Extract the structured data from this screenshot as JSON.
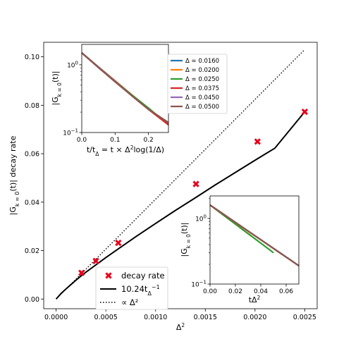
{
  "chart_data": [
    {
      "id": "main",
      "type": "line",
      "xlabel": "Δ²",
      "ylabel": "|G_{k=0}(t)| decay rate",
      "xlim": [
        -0.000125,
        0.002625
      ],
      "ylim": [
        -0.004,
        0.106
      ],
      "x_ticks": [
        "0.0000",
        "0.0005",
        "0.0010",
        "0.0015",
        "0.0020",
        "0.0025"
      ],
      "x_tick_values": [
        0,
        0.0005,
        0.001,
        0.0015,
        0.002,
        0.0025
      ],
      "y_ticks": [
        "0.00",
        "0.02",
        "0.04",
        "0.06",
        "0.08",
        "0.10"
      ],
      "y_tick_values": [
        0,
        0.02,
        0.04,
        0.06,
        0.08,
        0.1
      ],
      "grid": false,
      "legend_placement": "lower-center",
      "series": [
        {
          "name": "decay rate",
          "kind": "scatter",
          "marker": "x",
          "color": "#e8001c",
          "x": [
            0.000256,
            0.0004,
            0.000625,
            0.00140625,
            0.002025,
            0.0025
          ],
          "y": [
            0.0108,
            0.0157,
            0.0232,
            0.0475,
            0.065,
            0.0773
          ]
        },
        {
          "name": "10.24t_Δ^{-1}",
          "kind": "line",
          "style": "solid",
          "color": "#000000",
          "x": [
            0,
            5e-05,
            0.0001,
            0.00015,
            0.0002,
            0.00025,
            0.0003,
            0.0004,
            0.0005,
            0.0006,
            0.0008,
            0.001,
            0.0012,
            0.0014,
            0.0016,
            0.0018,
            0.002,
            0.0022,
            0.0025
          ],
          "y": [
            0,
            0.0023,
            0.0042,
            0.006,
            0.0078,
            0.0095,
            0.0111,
            0.0141,
            0.0171,
            0.02,
            0.0257,
            0.0312,
            0.0366,
            0.0418,
            0.0471,
            0.0522,
            0.0573,
            0.0623,
            0.0773
          ]
        },
        {
          "name": "∝ Δ²",
          "kind": "line",
          "style": "dotted",
          "color": "#000000",
          "x": [
            0,
            0.0025
          ],
          "y": [
            0,
            0.103
          ]
        }
      ]
    },
    {
      "id": "inset-top",
      "type": "line",
      "xlabel": "t/t_Δ = t × Δ²log(1/Δ)",
      "ylabel": "|G_{k=0}(t)|",
      "xlim": [
        0,
        0.26
      ],
      "ylim_log": [
        0.1,
        2.0
      ],
      "y_scale": "log",
      "x_ticks": [
        "0.0",
        "0.1",
        "0.2"
      ],
      "x_tick_values": [
        0,
        0.1,
        0.2
      ],
      "y_ticks": [
        "10^{-1}",
        "10^{0}"
      ],
      "y_tick_values": [
        0.1,
        1
      ],
      "legend_placement": "right",
      "series": [
        {
          "name": "Δ = 0.0160",
          "color": "#1f77b4",
          "x": [
            0,
            0.05,
            0.1,
            0.15,
            0.2,
            0.26
          ],
          "y": [
            1.5,
            0.93,
            0.58,
            0.36,
            0.22,
            0.13
          ]
        },
        {
          "name": "Δ = 0.0200",
          "color": "#ff7f0e",
          "x": [
            0,
            0.05,
            0.1,
            0.15,
            0.2,
            0.26
          ],
          "y": [
            1.5,
            0.92,
            0.58,
            0.36,
            0.22,
            0.13
          ]
        },
        {
          "name": "Δ = 0.0250",
          "color": "#2ca02c",
          "x": [
            0,
            0.05,
            0.1,
            0.15,
            0.2,
            0.26
          ],
          "y": [
            1.5,
            0.92,
            0.57,
            0.36,
            0.23,
            0.13
          ]
        },
        {
          "name": "Δ = 0.0375",
          "color": "#d62728",
          "x": [
            0,
            0.05,
            0.1,
            0.15,
            0.2,
            0.26
          ],
          "y": [
            1.5,
            0.92,
            0.57,
            0.35,
            0.22,
            0.13
          ]
        },
        {
          "name": "Δ = 0.0450",
          "color": "#9467bd",
          "x": [
            0,
            0.05,
            0.1,
            0.15,
            0.2,
            0.26
          ],
          "y": [
            1.5,
            0.91,
            0.57,
            0.35,
            0.22,
            0.14
          ]
        },
        {
          "name": "Δ = 0.0500",
          "color": "#8c564b",
          "x": [
            0,
            0.05,
            0.1,
            0.15,
            0.2,
            0.26
          ],
          "y": [
            1.5,
            0.91,
            0.56,
            0.35,
            0.22,
            0.14
          ]
        }
      ]
    },
    {
      "id": "inset-bottom",
      "type": "line",
      "xlabel": "tΔ²",
      "ylabel": "|G_{k=0}(t)|",
      "xlim": [
        0,
        0.07
      ],
      "ylim_log": [
        0.1,
        2.2
      ],
      "y_scale": "log",
      "x_ticks": [
        "0.00",
        "0.02",
        "0.04",
        "0.06"
      ],
      "x_tick_values": [
        0,
        0.02,
        0.04,
        0.06
      ],
      "y_ticks": [
        "10^{-1}",
        "10^{0}"
      ],
      "y_tick_values": [
        0.1,
        1
      ],
      "series": [
        {
          "name": "Δ = 0.0160",
          "color": "#1f77b4",
          "x": [
            0,
            0.07
          ],
          "y": [
            1.6,
            0.19
          ]
        },
        {
          "name": "Δ = 0.0200",
          "color": "#ff7f0e",
          "x": [
            0,
            0.033
          ],
          "y": [
            1.6,
            0.53
          ]
        },
        {
          "name": "Δ = 0.0250",
          "color": "#2ca02c",
          "x": [
            0,
            0.05
          ],
          "y": [
            1.6,
            0.3
          ]
        },
        {
          "name": "Δ = 0.0375",
          "color": "#d62728",
          "x": [
            0,
            0.056
          ],
          "y": [
            1.6,
            0.29
          ]
        },
        {
          "name": "Δ = 0.0450",
          "color": "#9467bd",
          "x": [
            0,
            0.07
          ],
          "y": [
            1.6,
            0.19
          ]
        },
        {
          "name": "Δ = 0.0500",
          "color": "#8c564b",
          "x": [
            0,
            0.07
          ],
          "y": [
            1.6,
            0.19
          ]
        }
      ]
    }
  ]
}
